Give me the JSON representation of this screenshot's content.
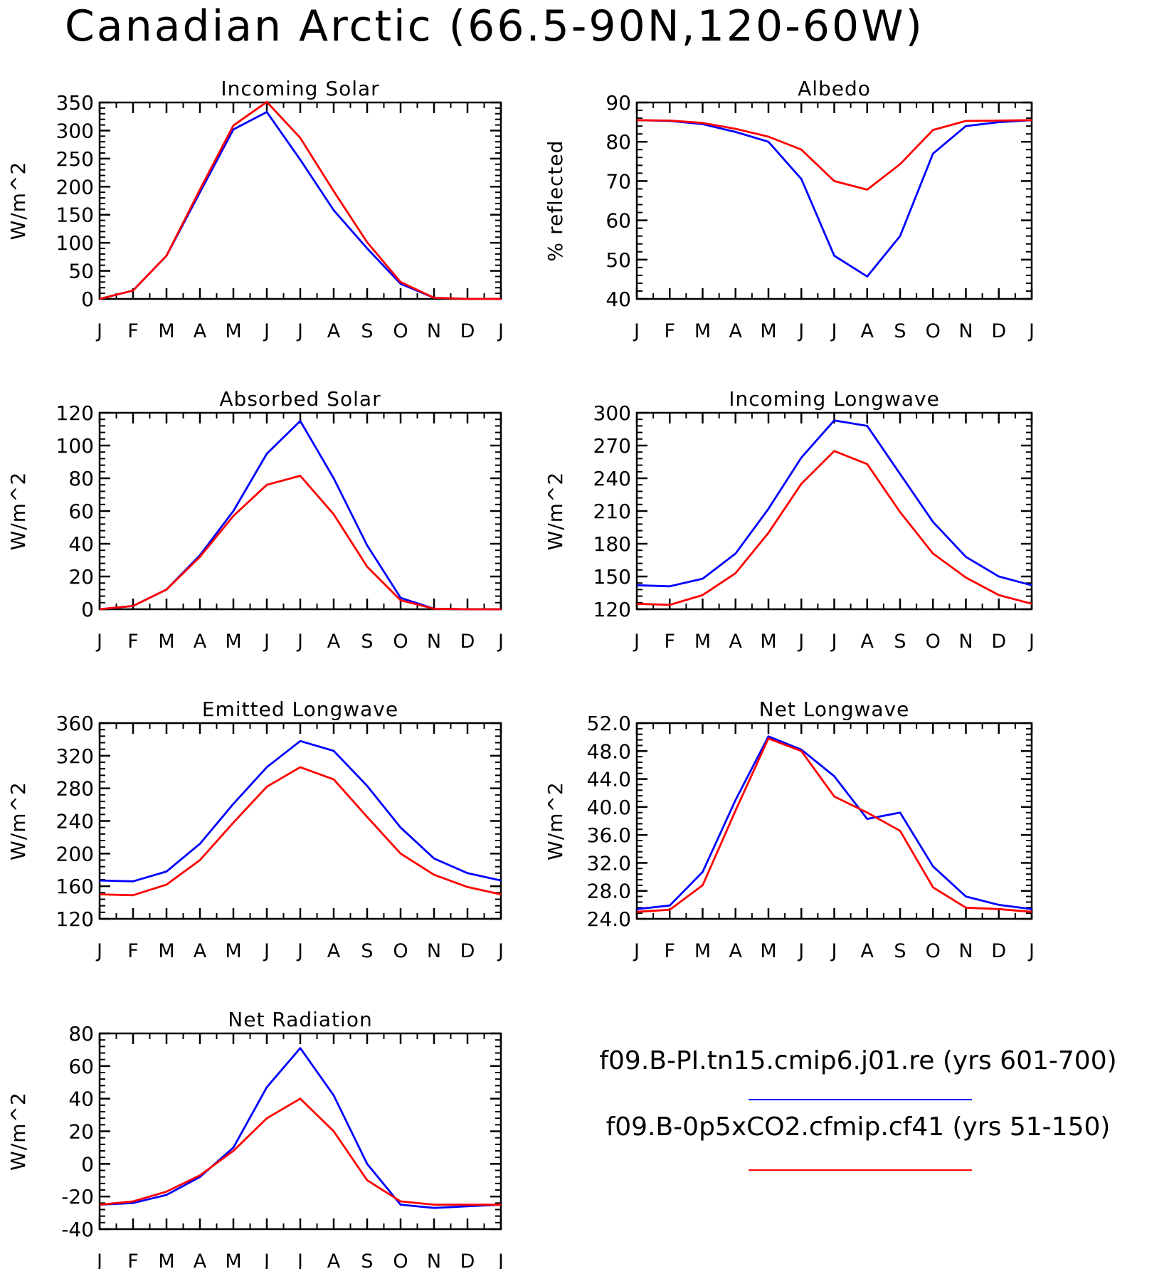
{
  "title": "Canadian Arctic (66.5-90N,120-60W)",
  "legend": [
    {
      "label": "f09.B-PI.tn15.cmip6.j01.re (yrs 601-700)",
      "color": "#0000ff"
    },
    {
      "label": "f09.B-0p5xCO2.cfmip.cf41 (yrs 51-150)",
      "color": "#ff0000"
    }
  ],
  "chart_data": [
    {
      "type": "line",
      "title": "Incoming Solar",
      "ylabel": "W/m^2",
      "x": [
        "J",
        "F",
        "M",
        "A",
        "M",
        "J",
        "J",
        "A",
        "S",
        "O",
        "N",
        "D",
        "J"
      ],
      "ylim": [
        0,
        350
      ],
      "yticks": [
        0,
        50,
        100,
        150,
        200,
        250,
        300,
        350
      ],
      "ytick_labels": [
        "0",
        "50",
        "100",
        "150",
        "200",
        "250",
        "300",
        "350"
      ],
      "series": [
        {
          "color": "#0000ff",
          "values": [
            0,
            15,
            77,
            190,
            302,
            333,
            248,
            158,
            90,
            27,
            2,
            0,
            0
          ]
        },
        {
          "color": "#ff0000",
          "values": [
            0,
            15,
            77,
            195,
            309,
            351,
            287,
            192,
            101,
            30,
            2,
            0,
            0
          ]
        }
      ]
    },
    {
      "type": "line",
      "title": "Albedo",
      "ylabel": "% reflected",
      "x": [
        "J",
        "F",
        "M",
        "A",
        "M",
        "J",
        "J",
        "A",
        "S",
        "O",
        "N",
        "D",
        "J"
      ],
      "ylim": [
        40,
        90
      ],
      "yticks": [
        40,
        50,
        60,
        70,
        80,
        90
      ],
      "ytick_labels": [
        "40",
        "50",
        "60",
        "70",
        "80",
        "90"
      ],
      "series": [
        {
          "color": "#0000ff",
          "values": [
            85.5,
            85.3,
            84.5,
            82.5,
            80,
            70.5,
            51,
            45.7,
            56,
            77,
            84,
            85,
            85.5
          ]
        },
        {
          "color": "#ff0000",
          "values": [
            85.5,
            85.4,
            84.8,
            83.3,
            81.3,
            78,
            70,
            67.8,
            74.3,
            83,
            85.3,
            85.4,
            85.5
          ]
        }
      ]
    },
    {
      "type": "line",
      "title": "Absorbed Solar",
      "ylabel": "W/m^2",
      "x": [
        "J",
        "F",
        "M",
        "A",
        "M",
        "J",
        "J",
        "A",
        "S",
        "O",
        "N",
        "D",
        "J"
      ],
      "ylim": [
        0,
        120
      ],
      "yticks": [
        0,
        20,
        40,
        60,
        80,
        100,
        120
      ],
      "ytick_labels": [
        "0",
        "20",
        "40",
        "60",
        "80",
        "100",
        "120"
      ],
      "series": [
        {
          "color": "#0000ff",
          "values": [
            0,
            2,
            12,
            33,
            60,
            95,
            115,
            80,
            39,
            7,
            0.3,
            0,
            0
          ]
        },
        {
          "color": "#ff0000",
          "values": [
            0,
            2,
            12,
            32,
            57,
            76,
            81.5,
            58,
            26,
            5.5,
            0.3,
            0,
            0
          ]
        }
      ]
    },
    {
      "type": "line",
      "title": "Incoming Longwave",
      "ylabel": "W/m^2",
      "x": [
        "J",
        "F",
        "M",
        "A",
        "M",
        "J",
        "J",
        "A",
        "S",
        "O",
        "N",
        "D",
        "J"
      ],
      "ylim": [
        120,
        300
      ],
      "yticks": [
        120,
        150,
        180,
        210,
        240,
        270,
        300
      ],
      "ytick_labels": [
        "120",
        "150",
        "180",
        "210",
        "240",
        "270",
        "300"
      ],
      "series": [
        {
          "color": "#0000ff",
          "values": [
            142,
            141,
            148,
            171,
            212,
            259,
            293,
            288,
            244,
            200,
            168,
            150,
            142
          ]
        },
        {
          "color": "#ff0000",
          "values": [
            125,
            124,
            133,
            153,
            190,
            235,
            265,
            253,
            209,
            171,
            149,
            133,
            125
          ]
        }
      ]
    },
    {
      "type": "line",
      "title": "Emitted Longwave",
      "ylabel": "W/m^2",
      "x": [
        "J",
        "F",
        "M",
        "A",
        "M",
        "J",
        "J",
        "A",
        "S",
        "O",
        "N",
        "D",
        "J"
      ],
      "ylim": [
        120,
        360
      ],
      "yticks": [
        120,
        160,
        200,
        240,
        280,
        320,
        360
      ],
      "ytick_labels": [
        "120",
        "160",
        "200",
        "240",
        "280",
        "320",
        "360"
      ],
      "series": [
        {
          "color": "#0000ff",
          "values": [
            167,
            166,
            178,
            212,
            261,
            306,
            338,
            326,
            283,
            232,
            194,
            176,
            167
          ]
        },
        {
          "color": "#ff0000",
          "values": [
            150,
            149,
            162,
            192,
            238,
            282,
            306,
            291,
            245,
            200,
            174,
            159,
            150
          ]
        }
      ]
    },
    {
      "type": "line",
      "title": "Net Longwave",
      "ylabel": "W/m^2",
      "x": [
        "J",
        "F",
        "M",
        "A",
        "M",
        "J",
        "J",
        "A",
        "S",
        "O",
        "N",
        "D",
        "J"
      ],
      "ylim": [
        24,
        52
      ],
      "yticks": [
        24,
        28,
        32,
        36,
        40,
        44,
        48,
        52
      ],
      "ytick_labels": [
        "24.0",
        "28.0",
        "32.0",
        "36.0",
        "40.0",
        "44.0",
        "48.0",
        "52.0"
      ],
      "series": [
        {
          "color": "#0000ff",
          "values": [
            25.4,
            25.9,
            30.7,
            41,
            50.1,
            48.2,
            44.4,
            38.3,
            39.2,
            31.5,
            27.2,
            26,
            25.4
          ]
        },
        {
          "color": "#ff0000",
          "values": [
            25,
            25.3,
            28.8,
            39.5,
            49.8,
            48,
            41.5,
            39.2,
            36.6,
            28.5,
            25.6,
            25.4,
            25
          ]
        }
      ]
    },
    {
      "type": "line",
      "title": "Net Radiation",
      "ylabel": "W/m^2",
      "x": [
        "J",
        "F",
        "M",
        "A",
        "M",
        "J",
        "J",
        "A",
        "S",
        "O",
        "N",
        "D",
        "J"
      ],
      "ylim": [
        -40,
        80
      ],
      "yticks": [
        -40,
        -20,
        0,
        20,
        40,
        60,
        80
      ],
      "ytick_labels": [
        "-40",
        "-20",
        "0",
        "20",
        "40",
        "60",
        "80"
      ],
      "series": [
        {
          "color": "#0000ff",
          "values": [
            -25,
            -24,
            -19,
            -8,
            10,
            47,
            71,
            42,
            0,
            -25,
            -27,
            -26,
            -25
          ]
        },
        {
          "color": "#ff0000",
          "values": [
            -25,
            -23,
            -17,
            -7,
            8,
            28,
            40,
            20,
            -10,
            -23,
            -25,
            -25,
            -25
          ]
        }
      ]
    }
  ]
}
